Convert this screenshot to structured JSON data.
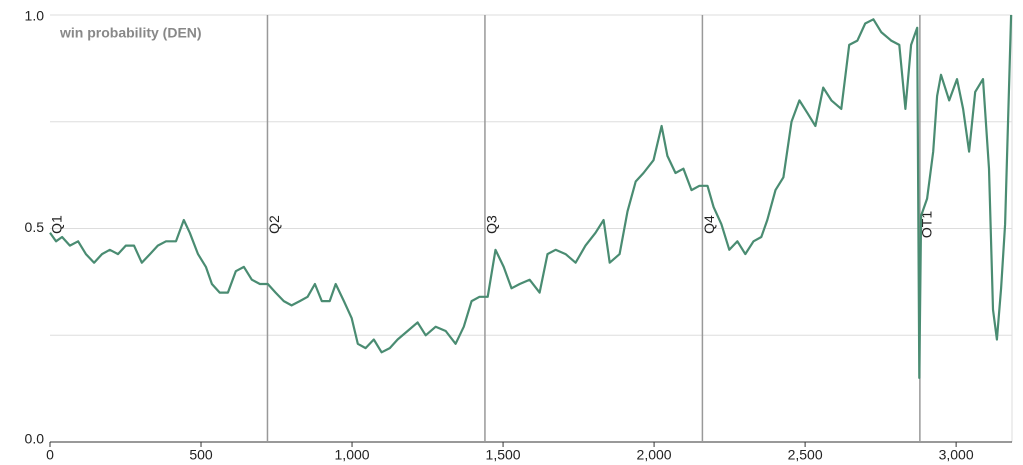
{
  "chart_data": {
    "type": "line",
    "label": "win probability (DEN)",
    "x": [
      0,
      20,
      40,
      66,
      93,
      119,
      146,
      172,
      198,
      225,
      251,
      278,
      304,
      331,
      357,
      384,
      417,
      443,
      463,
      490,
      516,
      536,
      562,
      589,
      615,
      642,
      668,
      695,
      721,
      747,
      774,
      800,
      827,
      853,
      877,
      900,
      926,
      946,
      973,
      999,
      1019,
      1045,
      1072,
      1098,
      1125,
      1151,
      1184,
      1217,
      1244,
      1277,
      1310,
      1343,
      1370,
      1396,
      1422,
      1449,
      1475,
      1502,
      1528,
      1555,
      1588,
      1621,
      1647,
      1674,
      1707,
      1740,
      1773,
      1806,
      1833,
      1853,
      1886,
      1912,
      1939,
      1965,
      1998,
      2025,
      2044,
      2071,
      2097,
      2124,
      2150,
      2177,
      2197,
      2223,
      2249,
      2276,
      2302,
      2329,
      2355,
      2375,
      2402,
      2428,
      2455,
      2481,
      2508,
      2534,
      2560,
      2587,
      2620,
      2646,
      2673,
      2699,
      2726,
      2752,
      2785,
      2812,
      2832,
      2851,
      2871,
      2878,
      2884,
      2904,
      2924,
      2937,
      2950,
      2977,
      3003,
      3023,
      3043,
      3063,
      3089,
      3109,
      3122,
      3135,
      3149,
      3162,
      3182
    ],
    "series": [
      {
        "name": "DEN",
        "color": "#4a8c72",
        "values": [
          0.49,
          0.47,
          0.48,
          0.46,
          0.47,
          0.44,
          0.42,
          0.44,
          0.45,
          0.44,
          0.46,
          0.46,
          0.42,
          0.44,
          0.46,
          0.47,
          0.47,
          0.52,
          0.49,
          0.44,
          0.41,
          0.37,
          0.35,
          0.35,
          0.4,
          0.41,
          0.38,
          0.37,
          0.37,
          0.35,
          0.33,
          0.32,
          0.33,
          0.34,
          0.37,
          0.33,
          0.33,
          0.37,
          0.33,
          0.29,
          0.23,
          0.22,
          0.24,
          0.21,
          0.22,
          0.24,
          0.26,
          0.28,
          0.25,
          0.27,
          0.26,
          0.23,
          0.27,
          0.33,
          0.34,
          0.34,
          0.45,
          0.41,
          0.36,
          0.37,
          0.38,
          0.35,
          0.44,
          0.45,
          0.44,
          0.42,
          0.46,
          0.49,
          0.52,
          0.42,
          0.44,
          0.54,
          0.61,
          0.63,
          0.66,
          0.74,
          0.67,
          0.63,
          0.64,
          0.59,
          0.6,
          0.6,
          0.55,
          0.51,
          0.45,
          0.47,
          0.44,
          0.47,
          0.48,
          0.52,
          0.59,
          0.62,
          0.75,
          0.8,
          0.77,
          0.74,
          0.83,
          0.8,
          0.78,
          0.93,
          0.94,
          0.98,
          0.99,
          0.96,
          0.94,
          0.93,
          0.78,
          0.93,
          0.97,
          0.15,
          0.53,
          0.57,
          0.68,
          0.81,
          0.86,
          0.8,
          0.85,
          0.78,
          0.68,
          0.82,
          0.85,
          0.64,
          0.31,
          0.24,
          0.36,
          0.51,
          1.0
        ]
      }
    ],
    "annotations": [
      {
        "x": 0,
        "label": "Q1"
      },
      {
        "x": 720,
        "label": "Q2"
      },
      {
        "x": 1440,
        "label": "Q3"
      },
      {
        "x": 2160,
        "label": "Q4"
      },
      {
        "x": 2880,
        "label": "OT1"
      }
    ],
    "xlim": [
      0,
      3185
    ],
    "xticks": [
      0,
      500,
      {
        "value": 1000,
        "label": "1,000"
      },
      {
        "value": 1500,
        "label": "1,500"
      },
      {
        "value": 2000,
        "label": "2,000"
      },
      {
        "value": 2500,
        "label": "2,500"
      },
      {
        "value": 3000,
        "label": "3,000"
      }
    ],
    "ylim": [
      0,
      1
    ],
    "yticks": [
      {
        "value": 0,
        "label": "0.0"
      },
      0.5,
      {
        "value": 1,
        "label": "1.0"
      }
    ],
    "minor_yticks": [
      0.25,
      0.75
    ],
    "grid": true
  }
}
